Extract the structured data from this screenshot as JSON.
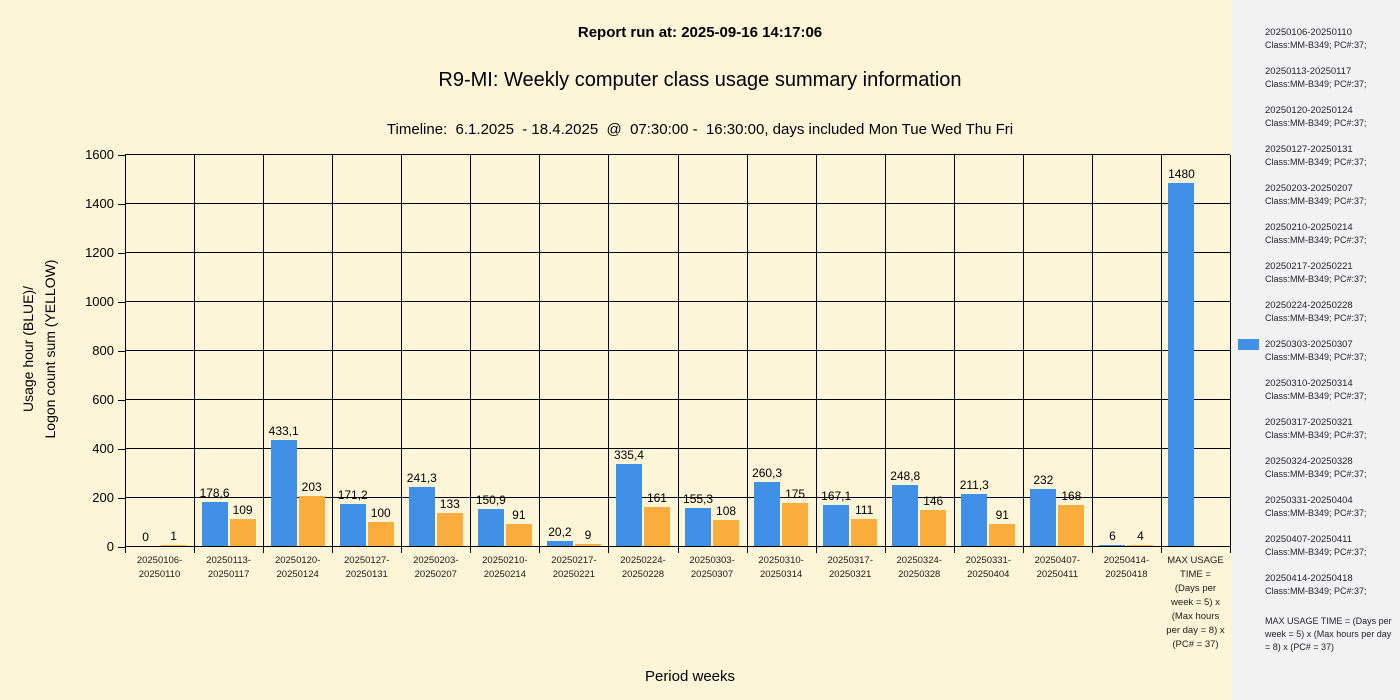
{
  "header": {
    "report_run": "Report run at: 2025-09-16 14:17:06",
    "title": "R9-MI: Weekly computer class usage summary information",
    "timeline": "Timeline:  6.1.2025  - 18.4.2025  @  07:30:00 -  16:30:00, days included Mon Tue Wed Thu Fri"
  },
  "colors": {
    "background": "#FDF5D7",
    "legend_background": "#F2F2F2",
    "usage_bar_blue": "#4190E8",
    "logon_bar_yellow": "#FAAD3C",
    "grid": "#000000"
  },
  "chart_data": {
    "type": "bar",
    "title": "R9-MI: Weekly computer class usage summary information",
    "xlabel": "Period weeks",
    "ylabel_lines": [
      "Usage hour (BLUE)/",
      "Logon count sum (YELLOW)"
    ],
    "ylim": [
      0,
      1600
    ],
    "y_ticks": [
      0,
      200,
      400,
      600,
      800,
      1000,
      1200,
      1400,
      1600
    ],
    "grid": true,
    "legend_position": "right",
    "categories": [
      {
        "lines": [
          "20250106-",
          "20250110"
        ]
      },
      {
        "lines": [
          "20250113-",
          "20250117"
        ]
      },
      {
        "lines": [
          "20250120-",
          "20250124"
        ]
      },
      {
        "lines": [
          "20250127-",
          "20250131"
        ]
      },
      {
        "lines": [
          "20250203-",
          "20250207"
        ]
      },
      {
        "lines": [
          "20250210-",
          "20250214"
        ]
      },
      {
        "lines": [
          "20250217-",
          "20250221"
        ]
      },
      {
        "lines": [
          "20250224-",
          "20250228"
        ]
      },
      {
        "lines": [
          "20250303-",
          "20250307"
        ]
      },
      {
        "lines": [
          "20250310-",
          "20250314"
        ]
      },
      {
        "lines": [
          "20250317-",
          "20250321"
        ]
      },
      {
        "lines": [
          "20250324-",
          "20250328"
        ]
      },
      {
        "lines": [
          "20250331-",
          "20250404"
        ]
      },
      {
        "lines": [
          "20250407-",
          "20250411"
        ]
      },
      {
        "lines": [
          "20250414-",
          "20250418"
        ]
      },
      {
        "lines": [
          "MAX USAGE",
          "TIME =",
          "(Days per",
          "week = 5) x",
          "(Max hours",
          "per day = 8) x",
          "(PC# = 37)"
        ]
      }
    ],
    "series": [
      {
        "name": "Usage hour (BLUE)",
        "color": "#4190E8",
        "values": [
          0,
          178.6,
          433.1,
          171.2,
          241.3,
          150.9,
          20.2,
          335.4,
          155.3,
          260.3,
          167.1,
          248.8,
          211.3,
          232,
          6,
          1480
        ],
        "labels": [
          "0",
          "178,6",
          "433,1",
          "171,2",
          "241,3",
          "150,9",
          "20,2",
          "335,4",
          "155,3",
          "260,3",
          "167,1",
          "248,8",
          "211,3",
          "232",
          "6",
          "1480"
        ]
      },
      {
        "name": "Logon count sum (YELLOW)",
        "color": "#FAAD3C",
        "values": [
          1,
          109,
          203,
          100,
          133,
          91,
          9,
          161,
          108,
          175,
          111,
          146,
          91,
          168,
          4,
          null
        ],
        "labels": [
          "1",
          "109",
          "203",
          "100",
          "133",
          "91",
          "9",
          "161",
          "108",
          "175",
          "111",
          "146",
          "91",
          "168",
          "4",
          null
        ]
      }
    ]
  },
  "legend": {
    "detail_text": "Class:MM-B349; PC#:37;",
    "items": [
      {
        "range": "20250106-20250110",
        "detail": "Class:MM-B349; PC#:37;",
        "swatch": false
      },
      {
        "range": "20250113-20250117",
        "detail": "Class:MM-B349; PC#:37;",
        "swatch": false
      },
      {
        "range": "20250120-20250124",
        "detail": "Class:MM-B349; PC#:37;",
        "swatch": false
      },
      {
        "range": "20250127-20250131",
        "detail": "Class:MM-B349; PC#:37;",
        "swatch": false
      },
      {
        "range": "20250203-20250207",
        "detail": "Class:MM-B349; PC#:37;",
        "swatch": false
      },
      {
        "range": "20250210-20250214",
        "detail": "Class:MM-B349; PC#:37;",
        "swatch": false
      },
      {
        "range": "20250217-20250221",
        "detail": "Class:MM-B349; PC#:37;",
        "swatch": false
      },
      {
        "range": "20250224-20250228",
        "detail": "Class:MM-B349; PC#:37;",
        "swatch": false
      },
      {
        "range": "20250303-20250307",
        "detail": "Class:MM-B349; PC#:37;",
        "swatch": true
      },
      {
        "range": "20250310-20250314",
        "detail": "Class:MM-B349; PC#:37;",
        "swatch": false
      },
      {
        "range": "20250317-20250321",
        "detail": "Class:MM-B349; PC#:37;",
        "swatch": false
      },
      {
        "range": "20250324-20250328",
        "detail": "Class:MM-B349; PC#:37;",
        "swatch": false
      },
      {
        "range": "20250331-20250404",
        "detail": "Class:MM-B349; PC#:37;",
        "swatch": false
      },
      {
        "range": "20250407-20250411",
        "detail": "Class:MM-B349; PC#:37;",
        "swatch": false
      },
      {
        "range": "20250414-20250418",
        "detail": "Class:MM-B349; PC#:37;",
        "swatch": false
      }
    ],
    "max_note": "MAX USAGE TIME =  (Days per week = 5) x (Max hours per day = 8) x (PC# = 37)"
  }
}
